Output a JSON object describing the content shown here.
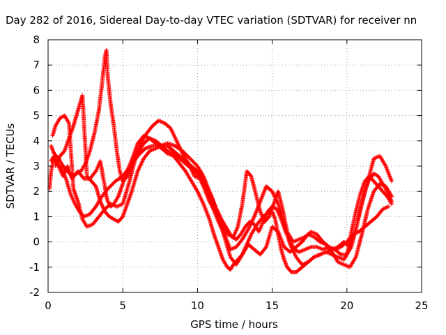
{
  "chart_data": {
    "type": "scatter",
    "title": "Day 282 of 2016, Sidereal Day-to-day VTEC variation (SDTVAR) for receiver nn",
    "xlabel": "GPS time / hours",
    "ylabel": "SDTVAR / TECUs",
    "xlim": [
      0,
      25
    ],
    "ylim": [
      -2,
      8
    ],
    "xticks": [
      0,
      5,
      10,
      15,
      20,
      25
    ],
    "yticks": [
      -2,
      -1,
      0,
      1,
      2,
      3,
      4,
      5,
      6,
      7,
      8
    ],
    "grid": true,
    "marker": "plus",
    "colors": {
      "series": "#ff0000",
      "grid": "#a0a0a0",
      "axis": "#000000"
    },
    "series": [
      {
        "x": [
          0.1,
          0.2,
          0.4,
          0.7,
          1.0,
          1.3,
          1.6,
          2.0,
          2.4,
          2.8,
          3.2,
          3.5,
          3.7,
          3.8,
          3.9,
          4.0,
          4.2,
          4.4,
          4.7,
          5.0,
          5.3,
          5.7,
          6.0,
          6.4,
          6.8,
          7.2,
          7.6,
          8.0,
          8.4,
          8.8,
          9.2,
          9.6,
          10.0,
          10.4,
          10.8,
          11.1,
          11.4,
          11.7,
          12.0,
          12.2,
          12.4,
          12.7,
          13.0,
          13.3,
          13.6,
          14.0,
          14.4,
          14.8,
          15.0,
          15.2,
          15.4,
          15.6,
          15.8,
          16.0,
          16.3,
          16.6,
          17.0,
          17.4,
          17.8,
          18.2,
          18.6,
          19.0,
          19.4,
          19.8,
          20.0,
          20.3,
          20.6,
          20.9,
          21.2,
          21.5,
          21.8,
          22.1,
          22.4,
          22.7,
          23.0
        ],
        "y": [
          2.1,
          2.8,
          3.3,
          3.0,
          2.6,
          3.0,
          2.5,
          2.8,
          2.5,
          2.5,
          2.8,
          3.2,
          2.5,
          2.2,
          1.8,
          1.6,
          1.4,
          1.5,
          1.8,
          2.3,
          2.8,
          3.4,
          3.9,
          4.2,
          4.1,
          3.9,
          3.7,
          3.5,
          3.4,
          3.1,
          2.8,
          2.4,
          2.0,
          1.5,
          0.9,
          0.3,
          -0.2,
          -0.7,
          -1.0,
          -1.1,
          -0.9,
          -0.7,
          -0.5,
          -0.1,
          0.3,
          0.7,
          1.0,
          1.2,
          1.2,
          0.9,
          0.3,
          -0.3,
          -0.7,
          -1.0,
          -1.2,
          -1.2,
          -1.0,
          -0.8,
          -0.6,
          -0.5,
          -0.4,
          -0.5,
          -0.6,
          -0.7,
          -0.5,
          0.4,
          1.2,
          1.9,
          2.4,
          2.6,
          2.4,
          2.2,
          2.0,
          1.8,
          1.5
        ]
      },
      {
        "x": [
          0.2,
          0.4,
          0.6,
          0.9,
          1.2,
          1.5,
          1.8,
          2.1,
          2.4,
          2.8,
          3.2,
          3.6,
          4.0,
          4.5,
          5.0,
          5.5,
          6.0,
          6.5,
          7.0,
          7.5,
          8.0,
          8.5,
          9.0,
          9.5,
          10.0,
          10.4,
          10.8,
          11.2,
          11.6,
          12.0,
          12.3,
          12.6,
          12.9,
          13.2,
          13.5,
          13.8,
          14.1,
          14.4,
          14.7,
          15.0,
          15.3,
          15.6,
          15.9,
          16.2,
          16.5,
          16.8,
          17.2,
          17.6,
          18.0,
          18.4,
          18.8,
          19.2,
          19.6,
          20.0,
          20.3,
          20.6,
          20.9,
          21.2,
          21.5,
          21.8,
          22.1,
          22.4,
          22.7,
          23.0
        ],
        "y": [
          3.2,
          3.4,
          3.1,
          2.9,
          2.5,
          1.9,
          1.5,
          1.2,
          1.0,
          1.1,
          1.4,
          1.8,
          2.1,
          2.4,
          2.6,
          3.0,
          3.4,
          3.7,
          3.8,
          3.8,
          3.9,
          3.8,
          3.6,
          3.3,
          3.0,
          2.6,
          2.0,
          1.4,
          0.9,
          0.5,
          0.2,
          0.1,
          0.3,
          0.6,
          0.8,
          0.7,
          0.4,
          0.8,
          1.2,
          1.4,
          1.3,
          0.9,
          0.4,
          0.0,
          -0.3,
          -0.4,
          -0.3,
          -0.2,
          -0.2,
          -0.3,
          -0.2,
          -0.3,
          -0.5,
          -0.5,
          -0.2,
          0.5,
          1.3,
          2.0,
          2.5,
          2.7,
          2.6,
          2.3,
          2.0,
          1.6
        ]
      },
      {
        "x": [
          0.3,
          0.5,
          0.8,
          1.1,
          1.4,
          1.7,
          2.0,
          2.3,
          2.6,
          3.0,
          3.4,
          3.8,
          4.2,
          4.6,
          5.0,
          5.4,
          5.8,
          6.2,
          6.6,
          7.0,
          7.4,
          7.8,
          8.2,
          8.6,
          9.0,
          9.4,
          9.8,
          10.2,
          10.6,
          11.0,
          11.4,
          11.8,
          12.2,
          12.6,
          13.0,
          13.4,
          13.8,
          14.2,
          14.6,
          15.0,
          15.4,
          15.8,
          16.2,
          16.6,
          17.0,
          17.4,
          17.8,
          18.2,
          18.6,
          19.0,
          19.4,
          19.8,
          20.2,
          20.6,
          21.0,
          21.4,
          21.8,
          22.2,
          22.6,
          23.0
        ],
        "y": [
          4.2,
          4.6,
          4.9,
          5.0,
          4.7,
          2.1,
          1.6,
          0.9,
          0.6,
          0.7,
          1.0,
          1.3,
          1.5,
          1.4,
          1.5,
          2.3,
          3.2,
          3.9,
          4.3,
          4.6,
          4.8,
          4.7,
          4.5,
          4.0,
          3.5,
          3.1,
          2.6,
          2.5,
          2.2,
          1.7,
          1.0,
          0.2,
          -0.6,
          -0.9,
          -0.5,
          -0.1,
          -0.3,
          -0.5,
          -0.2,
          0.6,
          0.4,
          -0.2,
          -0.4,
          -0.2,
          0.0,
          0.3,
          0.2,
          0.0,
          -0.1,
          -0.4,
          -0.8,
          -0.9,
          -1.0,
          -0.6,
          0.3,
          1.3,
          2.0,
          2.3,
          2.2,
          1.8
        ]
      },
      {
        "x": [
          0.2,
          0.4,
          0.7,
          1.0,
          1.3,
          1.6,
          1.9,
          2.2,
          2.5,
          2.8,
          3.1,
          3.4,
          3.6,
          3.8,
          3.9,
          4.0,
          4.2,
          4.4,
          4.6,
          4.8,
          5.0,
          5.3,
          5.6,
          6.0,
          6.4,
          6.8,
          7.2,
          7.6,
          8.0,
          8.4,
          8.8,
          9.2,
          9.6,
          10.0,
          10.5,
          11.0,
          11.4,
          11.8,
          12.2,
          12.6,
          13.0,
          13.4,
          13.8,
          14.2,
          14.6,
          15.0,
          15.4,
          15.8,
          16.2,
          16.6,
          17.0,
          17.4,
          17.8,
          18.2,
          18.6,
          19.0,
          19.4,
          19.8,
          20.2,
          20.6,
          21.0,
          21.4,
          21.8,
          22.2,
          22.6,
          23.0
        ],
        "y": [
          3.8,
          3.5,
          3.3,
          3.0,
          2.8,
          2.6,
          2.7,
          2.8,
          3.1,
          3.6,
          4.3,
          5.2,
          6.2,
          7.3,
          7.6,
          6.5,
          5.4,
          4.6,
          3.6,
          2.8,
          2.4,
          2.6,
          3.0,
          3.5,
          3.9,
          4.1,
          4.0,
          3.8,
          3.8,
          3.6,
          3.4,
          3.2,
          3.0,
          2.8,
          2.4,
          1.4,
          0.8,
          0.3,
          -0.3,
          -0.2,
          0.1,
          0.5,
          1.0,
          1.6,
          2.2,
          2.0,
          1.5,
          0.7,
          -0.1,
          -0.6,
          -0.9,
          -0.8,
          -0.6,
          -0.5,
          -0.4,
          -0.3,
          -0.2,
          0.0,
          -0.2,
          0.5,
          1.5,
          2.4,
          3.3,
          3.4,
          3.0,
          2.4
        ]
      },
      {
        "x": [
          0.5,
          0.8,
          1.1,
          1.4,
          1.7,
          2.0,
          2.3,
          2.6,
          2.9,
          3.2,
          3.5,
          3.8,
          4.1,
          4.4,
          4.7,
          5.0,
          5.3,
          5.6,
          6.0,
          6.4,
          6.8,
          7.2,
          7.6,
          8.0,
          8.4,
          8.8,
          9.2,
          9.6,
          10.0,
          10.4,
          10.8,
          11.2,
          11.6,
          12.0,
          12.4,
          12.7,
          13.0,
          13.3,
          13.6,
          13.9,
          14.2,
          14.5,
          14.8,
          15.1,
          15.4,
          15.7,
          16.0,
          16.4,
          16.8,
          17.2,
          17.6,
          18.0,
          18.4,
          18.8,
          19.2,
          19.6,
          20.0,
          20.4,
          20.8,
          21.2,
          21.6,
          22.0,
          22.4,
          22.8
        ],
        "y": [
          3.0,
          3.4,
          3.6,
          4.1,
          4.6,
          5.2,
          5.8,
          2.6,
          2.4,
          2.2,
          1.6,
          1.2,
          1.0,
          0.9,
          0.8,
          1.0,
          1.5,
          2.0,
          2.8,
          3.3,
          3.6,
          3.7,
          3.8,
          3.6,
          3.5,
          3.3,
          3.1,
          2.9,
          2.7,
          2.2,
          1.6,
          1.2,
          0.7,
          0.3,
          0.2,
          0.6,
          1.5,
          2.8,
          2.6,
          1.9,
          1.2,
          0.8,
          1.0,
          1.5,
          2.0,
          1.3,
          0.4,
          0.0,
          0.1,
          0.2,
          0.4,
          0.3,
          0.0,
          -0.2,
          -0.3,
          -0.2,
          0.0,
          0.3,
          0.4,
          0.6,
          0.8,
          1.0,
          1.3,
          1.4
        ]
      }
    ]
  }
}
